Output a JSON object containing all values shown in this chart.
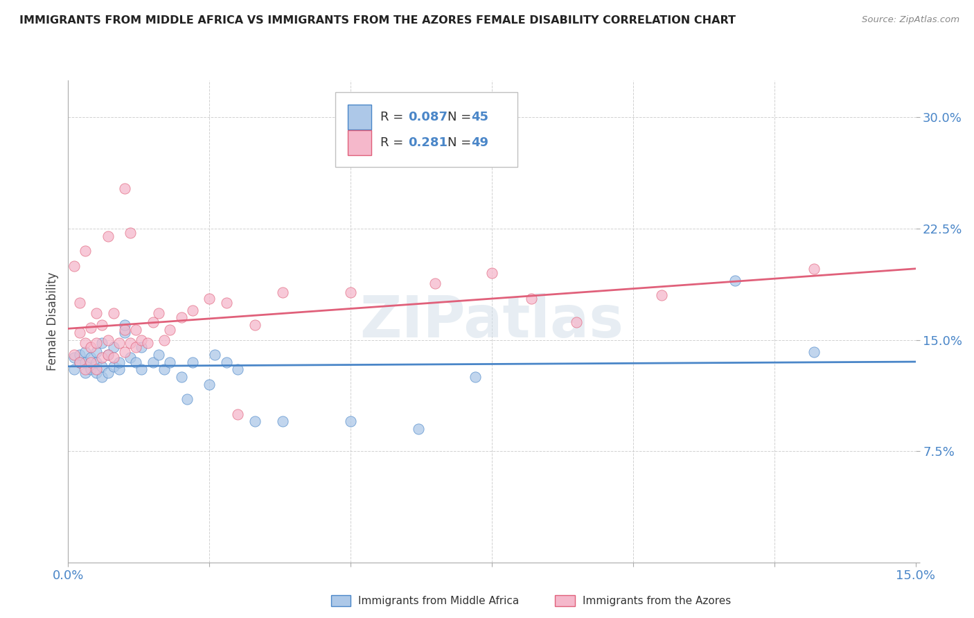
{
  "title": "IMMIGRANTS FROM MIDDLE AFRICA VS IMMIGRANTS FROM THE AZORES FEMALE DISABILITY CORRELATION CHART",
  "source": "Source: ZipAtlas.com",
  "ylabel": "Female Disability",
  "xlim": [
    0.0,
    0.15
  ],
  "ylim": [
    0.0,
    0.325
  ],
  "xticks": [
    0.0,
    0.025,
    0.05,
    0.075,
    0.1,
    0.125,
    0.15
  ],
  "xticklabels": [
    "0.0%",
    "",
    "",
    "",
    "",
    "",
    "15.0%"
  ],
  "yticks": [
    0.0,
    0.075,
    0.15,
    0.225,
    0.3
  ],
  "yticklabels_right": [
    "",
    "7.5%",
    "15.0%",
    "22.5%",
    "30.0%"
  ],
  "blue_R": 0.087,
  "blue_N": 45,
  "pink_R": 0.281,
  "pink_N": 49,
  "blue_dot_color": "#adc8e8",
  "pink_dot_color": "#f5b8cb",
  "blue_line_color": "#4a86c8",
  "pink_line_color": "#e0607a",
  "legend_label_blue": "Immigrants from Middle Africa",
  "legend_label_pink": "Immigrants from the Azores",
  "watermark": "ZIPatlas",
  "blue_x": [
    0.001,
    0.001,
    0.002,
    0.002,
    0.003,
    0.003,
    0.003,
    0.004,
    0.004,
    0.005,
    0.005,
    0.005,
    0.006,
    0.006,
    0.006,
    0.007,
    0.007,
    0.008,
    0.008,
    0.009,
    0.009,
    0.01,
    0.01,
    0.011,
    0.012,
    0.013,
    0.013,
    0.015,
    0.016,
    0.017,
    0.018,
    0.02,
    0.021,
    0.022,
    0.025,
    0.026,
    0.028,
    0.03,
    0.033,
    0.038,
    0.05,
    0.062,
    0.072,
    0.118,
    0.132
  ],
  "blue_y": [
    0.13,
    0.138,
    0.135,
    0.14,
    0.128,
    0.135,
    0.142,
    0.13,
    0.138,
    0.128,
    0.135,
    0.142,
    0.125,
    0.132,
    0.148,
    0.128,
    0.14,
    0.132,
    0.145,
    0.13,
    0.135,
    0.155,
    0.16,
    0.138,
    0.135,
    0.13,
    0.145,
    0.135,
    0.14,
    0.13,
    0.135,
    0.125,
    0.11,
    0.135,
    0.12,
    0.14,
    0.135,
    0.13,
    0.095,
    0.095,
    0.095,
    0.09,
    0.125,
    0.19,
    0.142
  ],
  "pink_x": [
    0.001,
    0.001,
    0.002,
    0.002,
    0.002,
    0.003,
    0.003,
    0.003,
    0.004,
    0.004,
    0.004,
    0.005,
    0.005,
    0.005,
    0.006,
    0.006,
    0.007,
    0.007,
    0.007,
    0.008,
    0.008,
    0.009,
    0.01,
    0.01,
    0.01,
    0.011,
    0.011,
    0.012,
    0.012,
    0.013,
    0.014,
    0.015,
    0.016,
    0.017,
    0.018,
    0.02,
    0.022,
    0.025,
    0.028,
    0.03,
    0.033,
    0.038,
    0.05,
    0.065,
    0.075,
    0.082,
    0.09,
    0.105,
    0.132
  ],
  "pink_y": [
    0.14,
    0.2,
    0.135,
    0.155,
    0.175,
    0.13,
    0.148,
    0.21,
    0.135,
    0.145,
    0.158,
    0.13,
    0.148,
    0.168,
    0.138,
    0.16,
    0.14,
    0.15,
    0.22,
    0.138,
    0.168,
    0.148,
    0.142,
    0.157,
    0.252,
    0.148,
    0.222,
    0.145,
    0.157,
    0.15,
    0.148,
    0.162,
    0.168,
    0.15,
    0.157,
    0.165,
    0.17,
    0.178,
    0.175,
    0.1,
    0.16,
    0.182,
    0.182,
    0.188,
    0.195,
    0.178,
    0.162,
    0.18,
    0.198
  ]
}
